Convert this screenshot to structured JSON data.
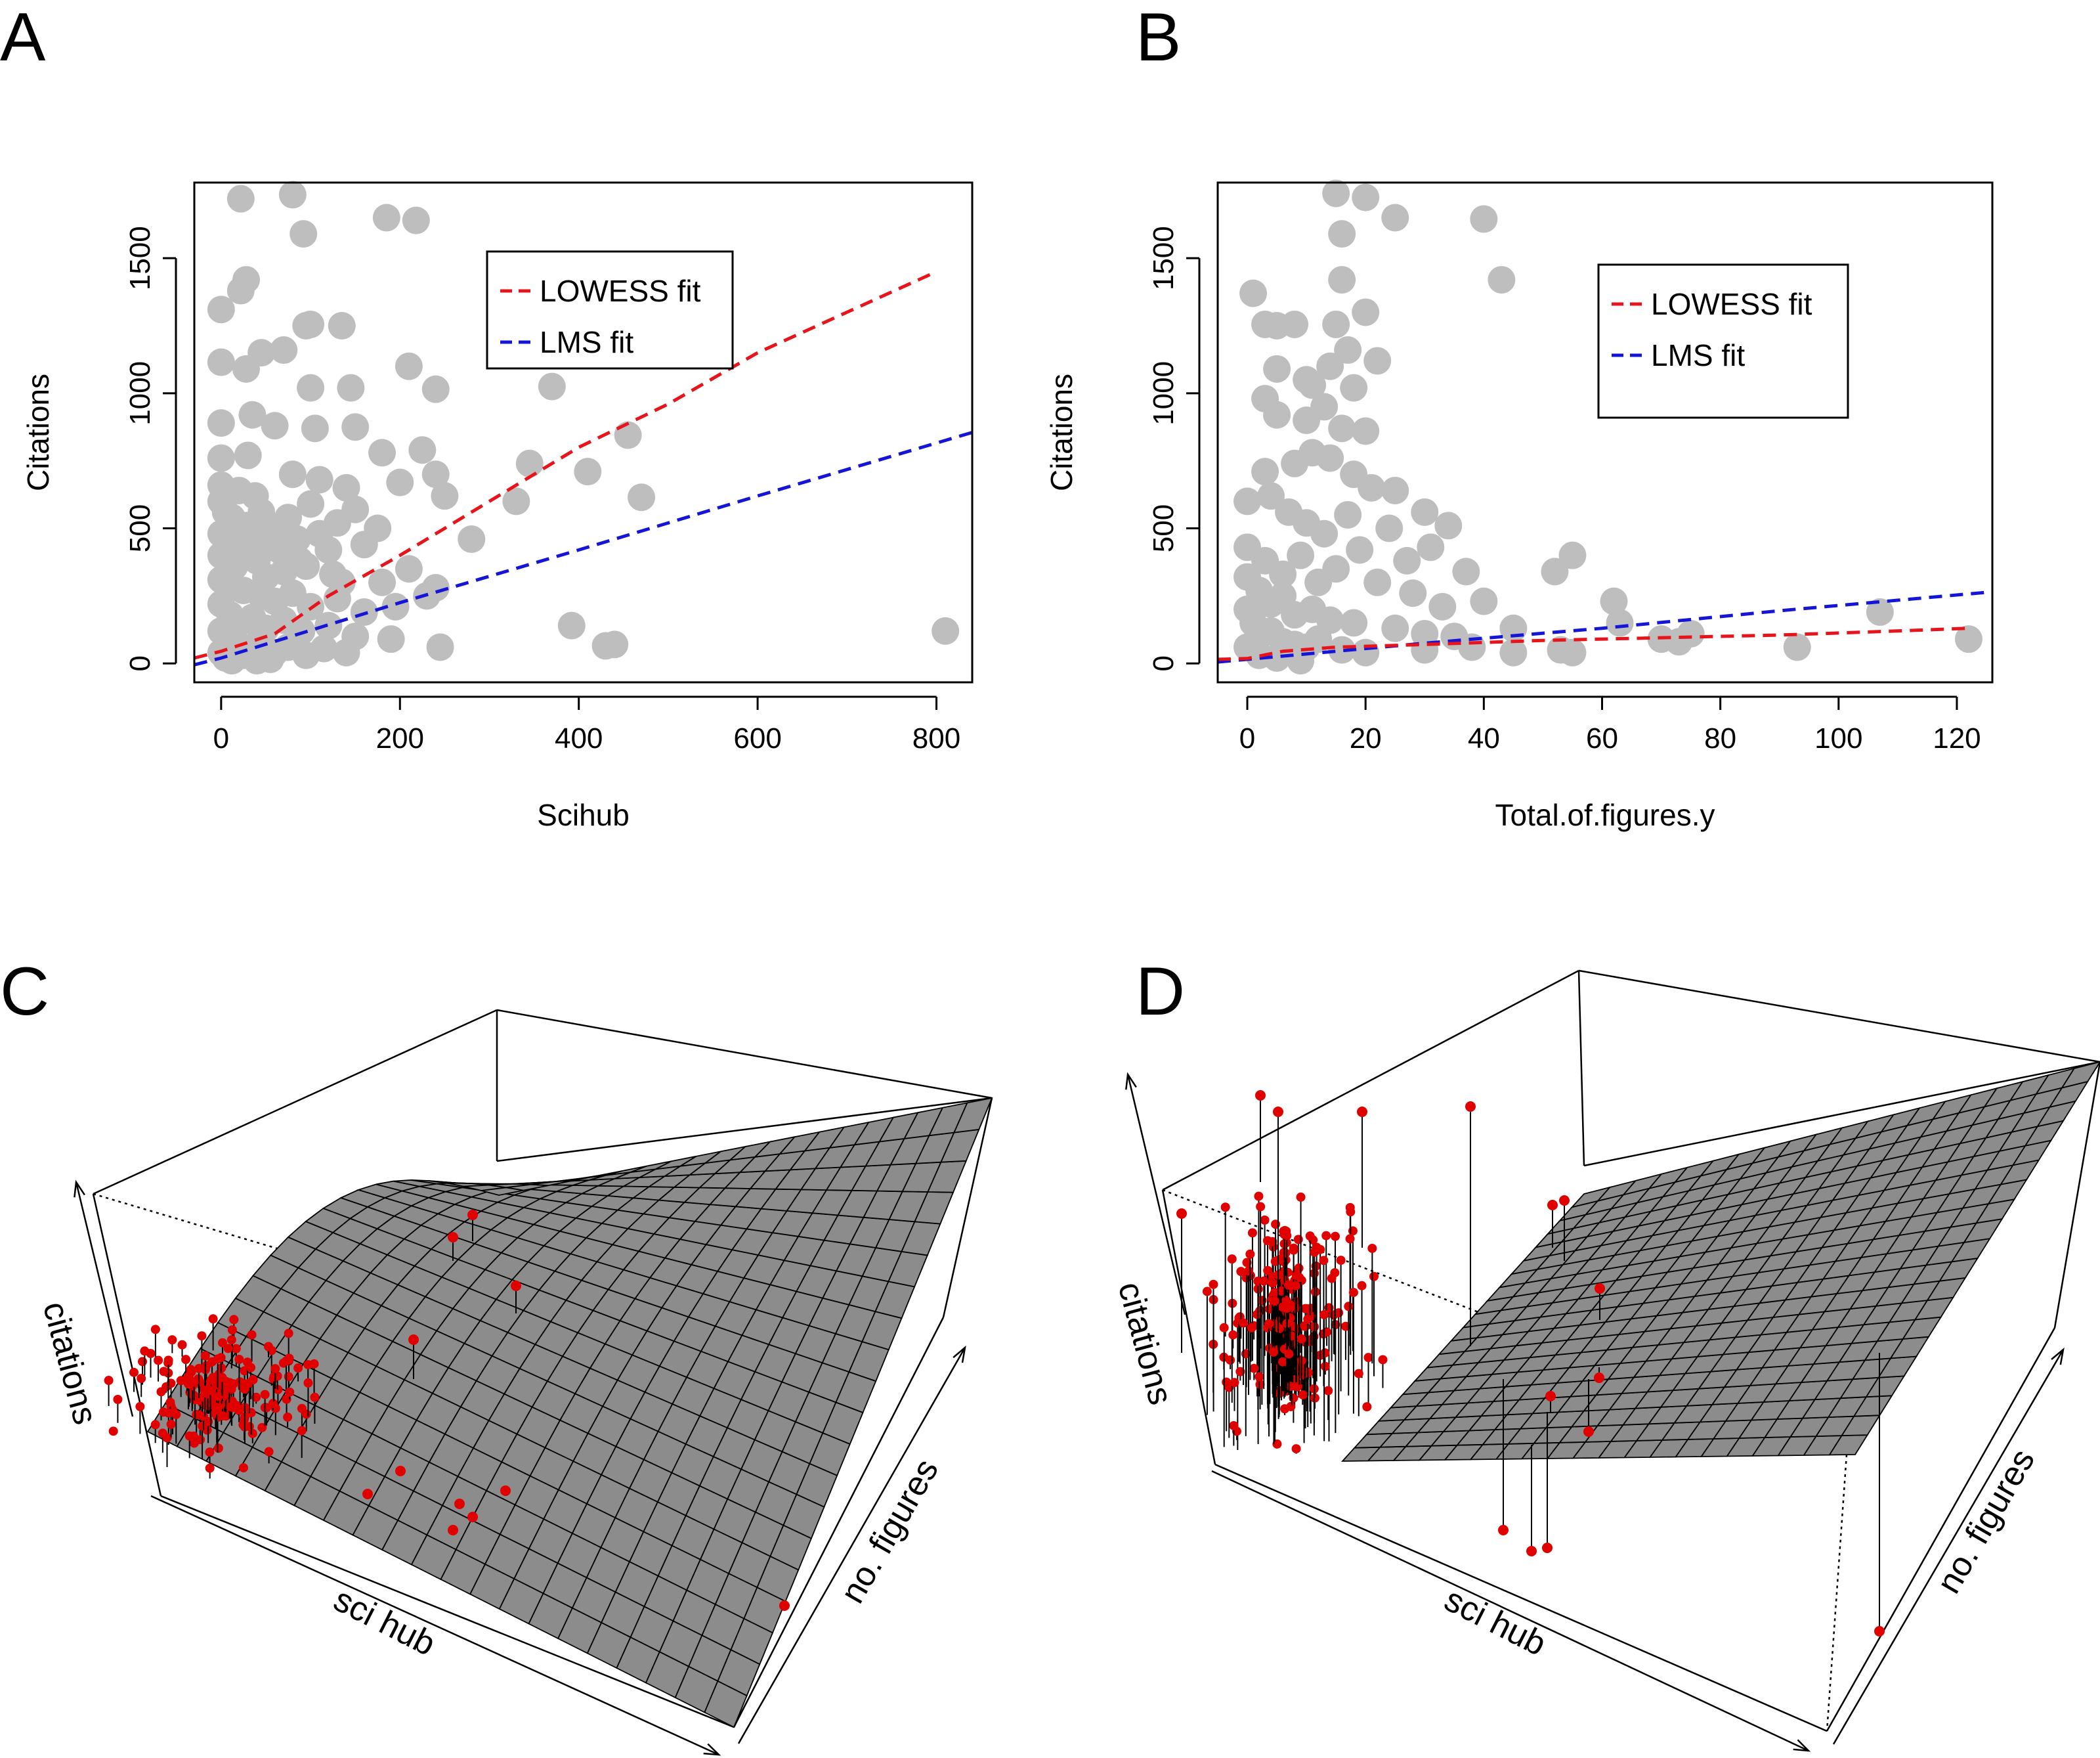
{
  "colors": {
    "points": "#bebebe",
    "lowess": "#e8141b",
    "lms": "#1515d8",
    "surface": "#8c8c8c",
    "surface_grid": "#000000",
    "points3d": "#e00000"
  },
  "chart_data": [
    {
      "panel": "A",
      "type": "scatter",
      "xlabel": "Scihub",
      "ylabel": "Citations",
      "xlim": [
        -30,
        840
      ],
      "ylim": [
        -70,
        1780
      ],
      "xticks": [
        0,
        200,
        400,
        600,
        800
      ],
      "yticks": [
        0,
        500,
        1000,
        1500
      ],
      "legend": {
        "position": "top-right",
        "entries": [
          "LOWESS fit",
          "LMS fit"
        ]
      },
      "points": [
        [
          22,
          1720
        ],
        [
          80,
          1735
        ],
        [
          92,
          1590
        ],
        [
          185,
          1650
        ],
        [
          218,
          1640
        ],
        [
          0,
          1310
        ],
        [
          22,
          1380
        ],
        [
          28,
          1420
        ],
        [
          95,
          1250
        ],
        [
          100,
          1255
        ],
        [
          135,
          1250
        ],
        [
          0,
          1115
        ],
        [
          28,
          1090
        ],
        [
          45,
          1150
        ],
        [
          70,
          1160
        ],
        [
          100,
          1020
        ],
        [
          145,
          1020
        ],
        [
          210,
          1100
        ],
        [
          240,
          1015
        ],
        [
          370,
          1025
        ],
        [
          0,
          890
        ],
        [
          35,
          920
        ],
        [
          60,
          880
        ],
        [
          105,
          870
        ],
        [
          150,
          875
        ],
        [
          180,
          780
        ],
        [
          225,
          790
        ],
        [
          345,
          740
        ],
        [
          410,
          710
        ],
        [
          455,
          845
        ],
        [
          0,
          760
        ],
        [
          30,
          770
        ],
        [
          80,
          700
        ],
        [
          110,
          680
        ],
        [
          140,
          650
        ],
        [
          200,
          670
        ],
        [
          240,
          700
        ],
        [
          250,
          620
        ],
        [
          330,
          600
        ],
        [
          470,
          615
        ],
        [
          0,
          600
        ],
        [
          20,
          640
        ],
        [
          45,
          560
        ],
        [
          75,
          540
        ],
        [
          100,
          590
        ],
        [
          130,
          520
        ],
        [
          150,
          570
        ],
        [
          175,
          500
        ],
        [
          0,
          480
        ],
        [
          30,
          470
        ],
        [
          55,
          430
        ],
        [
          85,
          460
        ],
        [
          120,
          420
        ],
        [
          160,
          440
        ],
        [
          280,
          460
        ],
        [
          0,
          400
        ],
        [
          15,
          360
        ],
        [
          40,
          380
        ],
        [
          70,
          340
        ],
        [
          95,
          360
        ],
        [
          125,
          330
        ],
        [
          180,
          300
        ],
        [
          210,
          350
        ],
        [
          240,
          280
        ],
        [
          0,
          310
        ],
        [
          10,
          290
        ],
        [
          25,
          270
        ],
        [
          45,
          250
        ],
        [
          60,
          230
        ],
        [
          80,
          260
        ],
        [
          100,
          210
        ],
        [
          130,
          240
        ],
        [
          160,
          190
        ],
        [
          195,
          210
        ],
        [
          230,
          250
        ],
        [
          0,
          220
        ],
        [
          10,
          180
        ],
        [
          20,
          150
        ],
        [
          35,
          170
        ],
        [
          50,
          130
        ],
        [
          70,
          160
        ],
        [
          90,
          120
        ],
        [
          120,
          140
        ],
        [
          150,
          100
        ],
        [
          190,
          90
        ],
        [
          0,
          120
        ],
        [
          8,
          90
        ],
        [
          18,
          70
        ],
        [
          30,
          50
        ],
        [
          42,
          80
        ],
        [
          60,
          40
        ],
        [
          75,
          60
        ],
        [
          95,
          30
        ],
        [
          115,
          55
        ],
        [
          140,
          40
        ],
        [
          245,
          60
        ],
        [
          0,
          40
        ],
        [
          5,
          20
        ],
        [
          12,
          10
        ],
        [
          25,
          30
        ],
        [
          40,
          10
        ],
        [
          55,
          15
        ],
        [
          5,
          560
        ],
        [
          15,
          430
        ],
        [
          28,
          510
        ],
        [
          50,
          320
        ],
        [
          65,
          420
        ],
        [
          88,
          380
        ],
        [
          110,
          480
        ],
        [
          135,
          300
        ],
        [
          0,
          660
        ],
        [
          12,
          540
        ],
        [
          38,
          620
        ],
        [
          58,
          500
        ],
        [
          392,
          140
        ],
        [
          430,
          65
        ],
        [
          440,
          70
        ],
        [
          810,
          120
        ]
      ],
      "lowess": [
        [
          -30,
          20
        ],
        [
          0,
          45
        ],
        [
          60,
          110
        ],
        [
          120,
          250
        ],
        [
          200,
          400
        ],
        [
          300,
          600
        ],
        [
          400,
          800
        ],
        [
          500,
          960
        ],
        [
          600,
          1150
        ],
        [
          700,
          1300
        ],
        [
          800,
          1450
        ]
      ],
      "lms": [
        [
          -30,
          -5
        ],
        [
          0,
          20
        ],
        [
          200,
          225
        ],
        [
          400,
          420
        ],
        [
          600,
          620
        ],
        [
          840,
          855
        ]
      ]
    },
    {
      "panel": "B",
      "type": "scatter",
      "xlabel": "Total.of.figures.y",
      "ylabel": "Citations",
      "xlim": [
        -5,
        126
      ],
      "ylim": [
        -70,
        1780
      ],
      "xticks": [
        0,
        20,
        40,
        60,
        80,
        100,
        120
      ],
      "yticks": [
        0,
        500,
        1000,
        1500
      ],
      "legend": {
        "position": "top-right",
        "entries": [
          "LOWESS fit",
          "LMS fit"
        ]
      },
      "points": [
        [
          15,
          1740
        ],
        [
          20,
          1725
        ],
        [
          25,
          1650
        ],
        [
          16,
          1590
        ],
        [
          40,
          1645
        ],
        [
          43,
          1420
        ],
        [
          1,
          1370
        ],
        [
          16,
          1420
        ],
        [
          3,
          1255
        ],
        [
          5,
          1250
        ],
        [
          8,
          1255
        ],
        [
          15,
          1255
        ],
        [
          20,
          1300
        ],
        [
          5,
          1090
        ],
        [
          10,
          1050
        ],
        [
          14,
          1100
        ],
        [
          17,
          1160
        ],
        [
          11,
          1030
        ],
        [
          18,
          1020
        ],
        [
          22,
          1120
        ],
        [
          3,
          980
        ],
        [
          5,
          920
        ],
        [
          10,
          900
        ],
        [
          13,
          950
        ],
        [
          16,
          870
        ],
        [
          20,
          860
        ],
        [
          3,
          710
        ],
        [
          8,
          740
        ],
        [
          11,
          780
        ],
        [
          14,
          760
        ],
        [
          18,
          700
        ],
        [
          21,
          650
        ],
        [
          25,
          640
        ],
        [
          30,
          560
        ],
        [
          34,
          510
        ],
        [
          0,
          600
        ],
        [
          4,
          620
        ],
        [
          7,
          560
        ],
        [
          10,
          520
        ],
        [
          13,
          480
        ],
        [
          17,
          550
        ],
        [
          19,
          420
        ],
        [
          24,
          500
        ],
        [
          27,
          380
        ],
        [
          31,
          430
        ],
        [
          37,
          340
        ],
        [
          0,
          430
        ],
        [
          3,
          380
        ],
        [
          6,
          330
        ],
        [
          9,
          400
        ],
        [
          12,
          300
        ],
        [
          15,
          350
        ],
        [
          22,
          300
        ],
        [
          28,
          260
        ],
        [
          33,
          210
        ],
        [
          40,
          230
        ],
        [
          0,
          320
        ],
        [
          2,
          270
        ],
        [
          4,
          220
        ],
        [
          6,
          250
        ],
        [
          8,
          180
        ],
        [
          11,
          200
        ],
        [
          14,
          160
        ],
        [
          18,
          150
        ],
        [
          25,
          130
        ],
        [
          30,
          110
        ],
        [
          35,
          100
        ],
        [
          45,
          130
        ],
        [
          0,
          200
        ],
        [
          1,
          150
        ],
        [
          2,
          100
        ],
        [
          4,
          120
        ],
        [
          6,
          80
        ],
        [
          8,
          70
        ],
        [
          10,
          60
        ],
        [
          12,
          90
        ],
        [
          16,
          50
        ],
        [
          20,
          40
        ],
        [
          30,
          50
        ],
        [
          38,
          60
        ],
        [
          45,
          40
        ],
        [
          52,
          340
        ],
        [
          55,
          400
        ],
        [
          62,
          230
        ],
        [
          63,
          150
        ],
        [
          70,
          90
        ],
        [
          73,
          80
        ],
        [
          75,
          110
        ],
        [
          53,
          50
        ],
        [
          55,
          40
        ],
        [
          93,
          60
        ],
        [
          107,
          190
        ],
        [
          122,
          90
        ],
        [
          0,
          60
        ],
        [
          2,
          30
        ],
        [
          5,
          20
        ],
        [
          9,
          10
        ]
      ],
      "lowess": [
        [
          -5,
          15
        ],
        [
          0,
          18
        ],
        [
          6,
          45
        ],
        [
          15,
          60
        ],
        [
          30,
          70
        ],
        [
          50,
          85
        ],
        [
          70,
          95
        ],
        [
          90,
          105
        ],
        [
          110,
          120
        ],
        [
          122,
          130
        ]
      ],
      "lms": [
        [
          -5,
          5
        ],
        [
          0,
          15
        ],
        [
          30,
          75
        ],
        [
          60,
          130
        ],
        [
          90,
          195
        ],
        [
          126,
          265
        ]
      ]
    },
    {
      "panel": "C",
      "type": "scatter3d",
      "axes": [
        "sci hub",
        "no. figures",
        "citations"
      ]
    },
    {
      "panel": "D",
      "type": "scatter3d",
      "axes": [
        "sci hub",
        "no. figures",
        "citations"
      ]
    }
  ]
}
